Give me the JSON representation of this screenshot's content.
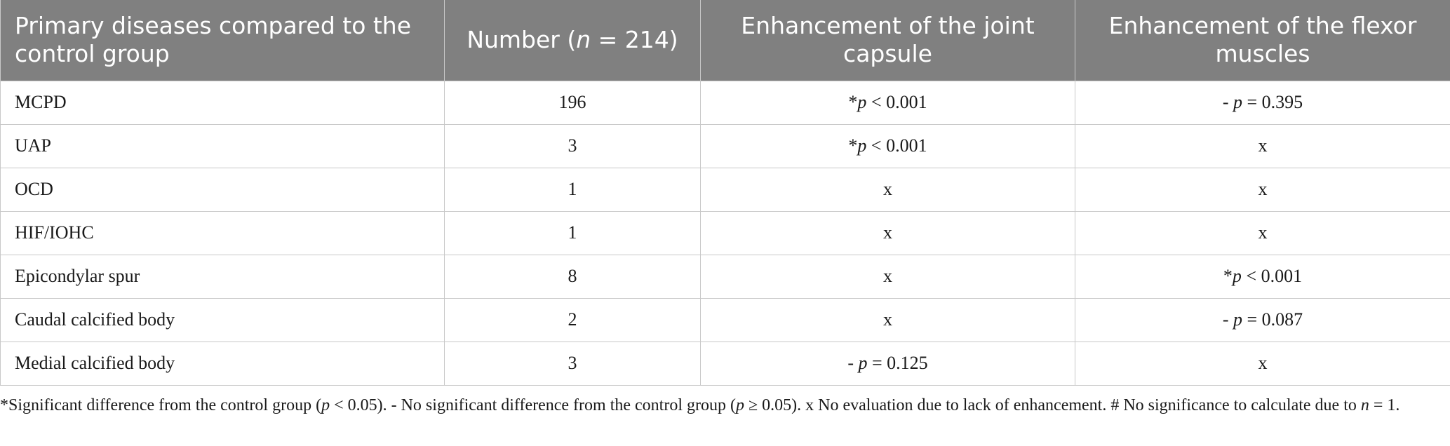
{
  "table": {
    "header": [
      "Primary diseases compared to the control group",
      "Number (n = 214)",
      "Enhancement of the joint capsule",
      "Enhancement of the flexor muscles"
    ],
    "rows": [
      [
        "MCPD",
        "196",
        "*p < 0.001",
        "- p = 0.395"
      ],
      [
        "UAP",
        "3",
        "*p < 0.001",
        "x"
      ],
      [
        "OCD",
        "1",
        "x",
        "x"
      ],
      [
        "HIF/IOHC",
        "1",
        "x",
        "x"
      ],
      [
        "Epicondylar spur",
        "8",
        "x",
        "*p < 0.001"
      ],
      [
        "Caudal calcified body",
        "2",
        "x",
        "- p = 0.087"
      ],
      [
        "Medial calcified body",
        "3",
        "- p = 0.125",
        "x"
      ]
    ],
    "footnote": "*Significant difference from the control group (p < 0.05). - No significant difference from the control group (p ≥ 0.05). x No evaluation due to lack of enhancement. # No significance to calculate due to n = 1."
  }
}
